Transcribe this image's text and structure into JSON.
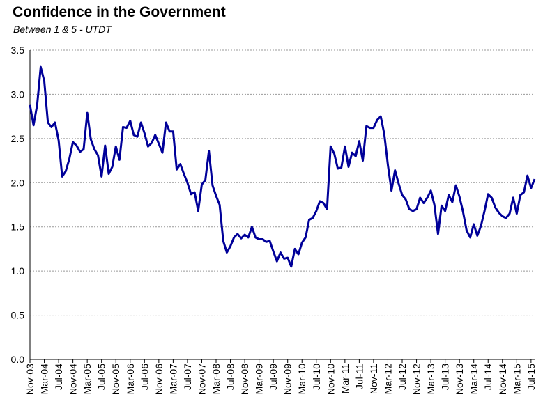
{
  "chart_data": {
    "type": "line",
    "title": "Confidence in the Government",
    "subtitle": "Between 1 & 5 - UTDT",
    "xlabel": "",
    "ylabel": "",
    "ylim": [
      0,
      3.5
    ],
    "yticks": [
      "0.0",
      "0.5",
      "1.0",
      "1.5",
      "2.0",
      "2.5",
      "3.0",
      "3.5"
    ],
    "grid": "horizontal dashed",
    "legend": "none",
    "series_color": "#000099",
    "x_start": "Nov-03",
    "x_end": "Jul-15",
    "xtick_labels": [
      "Nov-03",
      "Mar-04",
      "Jul-04",
      "Nov-04",
      "Mar-05",
      "Jul-05",
      "Nov-05",
      "Mar-06",
      "Jul-06",
      "Nov-06",
      "Mar-07",
      "Jul-07",
      "Nov-07",
      "Mar-08",
      "Jul-08",
      "Nov-08",
      "Mar-09",
      "Jul-09",
      "Nov-09",
      "Mar-10",
      "Jul-10",
      "Nov-10",
      "Mar-11",
      "Jul-11",
      "Nov-11",
      "Mar-12",
      "Jul-12",
      "Nov-12",
      "Mar-13",
      "Jul-13",
      "Nov-13",
      "Mar-14",
      "Jul-14",
      "Nov-14",
      "Mar-15",
      "Jul-15"
    ],
    "series": [
      {
        "values": [
          2.88,
          2.65,
          2.88,
          3.31,
          3.15,
          2.68,
          2.63,
          2.68,
          2.48,
          2.07,
          2.13,
          2.27,
          2.46,
          2.42,
          2.35,
          2.38,
          2.79,
          2.49,
          2.38,
          2.31,
          2.07,
          2.42,
          2.1,
          2.18,
          2.41,
          2.26,
          2.63,
          2.62,
          2.7,
          2.54,
          2.52,
          2.68,
          2.56,
          2.41,
          2.45,
          2.54,
          2.44,
          2.34,
          2.68,
          2.58,
          2.58,
          2.15,
          2.21,
          2.1,
          2.0,
          1.87,
          1.89,
          1.68,
          1.98,
          2.03,
          2.36,
          1.97,
          1.85,
          1.75,
          1.34,
          1.21,
          1.28,
          1.38,
          1.42,
          1.37,
          1.41,
          1.38,
          1.5,
          1.38,
          1.36,
          1.36,
          1.33,
          1.34,
          1.22,
          1.11,
          1.21,
          1.14,
          1.15,
          1.05,
          1.25,
          1.19,
          1.32,
          1.38,
          1.58,
          1.6,
          1.68,
          1.79,
          1.77,
          1.7,
          2.41,
          2.33,
          2.16,
          2.17,
          2.41,
          2.18,
          2.34,
          2.3,
          2.47,
          2.25,
          2.64,
          2.62,
          2.62,
          2.71,
          2.75,
          2.55,
          2.2,
          1.91,
          2.14,
          1.99,
          1.86,
          1.81,
          1.7,
          1.68,
          1.7,
          1.83,
          1.77,
          1.83,
          1.91,
          1.75,
          1.42,
          1.74,
          1.68,
          1.86,
          1.78,
          1.97,
          1.84,
          1.67,
          1.46,
          1.38,
          1.53,
          1.4,
          1.51,
          1.68,
          1.87,
          1.83,
          1.72,
          1.66,
          1.62,
          1.6,
          1.65,
          1.83,
          1.65,
          1.86,
          1.89,
          2.08,
          1.94,
          2.04
        ]
      }
    ]
  }
}
